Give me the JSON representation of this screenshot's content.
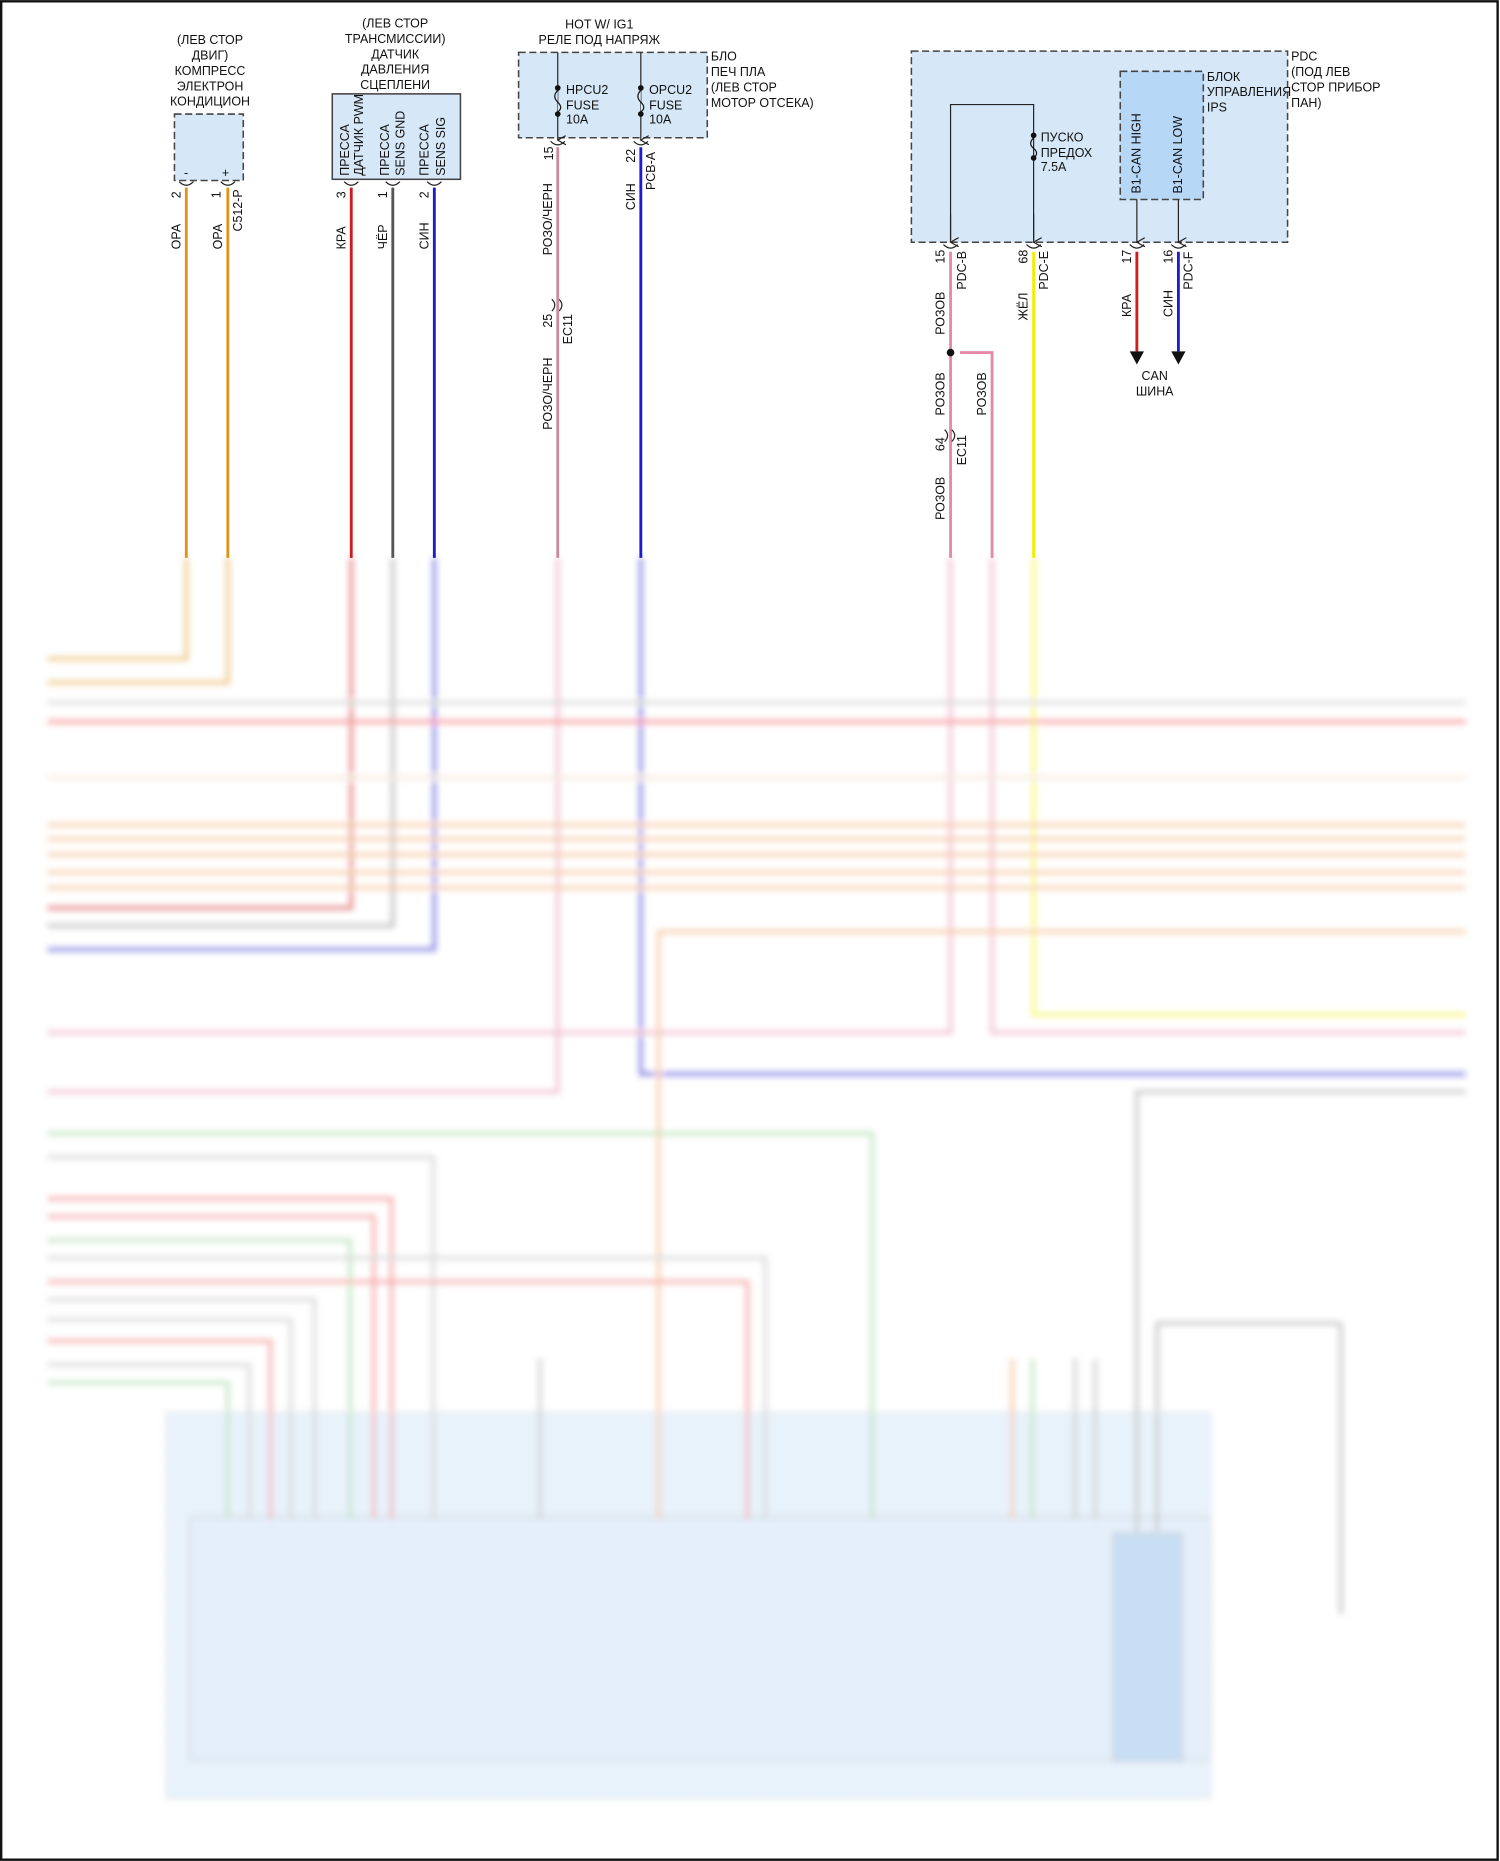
{
  "compressor": {
    "title": [
      "(ЛЕВ СТОР",
      "ДВИГ)",
      "КОМПРЕСС",
      "ЭЛЕКТРОН",
      "КОНДИЦИОН"
    ],
    "pin_minus": "-",
    "pin_plus": "+",
    "pins": [
      "2",
      "1"
    ],
    "connector": "C512-P",
    "wires": [
      "ОРА",
      "ОРА"
    ]
  },
  "pressure_sensor": {
    "title": [
      "(ЛЕВ СТОР",
      "ТРАНСМИССИИ)",
      "ДАТЧИК",
      "ДАВЛЕНИЯ",
      "СЦЕПЛЕНИ"
    ],
    "terminals": [
      [
        "ПРЕССА",
        "ДАТЧИК PWM"
      ],
      [
        "ПРЕССА",
        "SENS GND"
      ],
      [
        "ПРЕССА",
        "SENS SIG"
      ]
    ],
    "pins": [
      "3",
      "1",
      "2"
    ],
    "wires": [
      "КРА",
      "ЧЁР",
      "СИН"
    ]
  },
  "blo": {
    "title": [
      "HOT W/ IG1",
      "РЕЛЕ ПОД НАПРЯЖ"
    ],
    "side": [
      "БЛО",
      "ПЕЧ ПЛА",
      "(ЛЕВ СТОР",
      "МОТОР ОТСЕКА)"
    ],
    "fuses": [
      [
        "HPCU2",
        "FUSE",
        "10A"
      ],
      [
        "OPCU2",
        "FUSE",
        "10A"
      ]
    ],
    "pins": [
      "15",
      "22"
    ],
    "connector_b": "PCB-A",
    "wire_a": "РОЗО/ЧЕРН",
    "wire_b": "СИН",
    "inline_pin": "25",
    "inline_connector": "EC11"
  },
  "pdc": {
    "side": [
      "PDC",
      "(ПОД ЛЕВ",
      "СТОР ПРИБОР",
      "ПАН)"
    ],
    "fuse": [
      "ПУСКО",
      "ПРЕДОХ",
      "7.5A"
    ],
    "ips": [
      "БЛОК",
      "УПРАВЛЕНИЯ",
      "IPS"
    ],
    "can_high": "B1-CAN HIGH",
    "can_low": "B1-CAN LOW",
    "pins": [
      "15",
      "68",
      "17",
      "16"
    ],
    "connectors": [
      "PDC-B",
      "PDC-E",
      "PDC-F"
    ],
    "wires": [
      "РОЗОВ",
      "ЖЁЛ",
      "КРА",
      "СИН"
    ],
    "splice_wires": [
      "РОЗОВ",
      "РОЗОВ",
      "РОЗОВ"
    ],
    "inline_pin": "64",
    "inline_connector": "EC11",
    "can_bus": [
      "CAN",
      "ШИНА"
    ]
  },
  "colors": {
    "orange": "#e0951a",
    "red": "#d01c1c",
    "black": "#555555",
    "blue": "#1c1ccc",
    "pink_black": "#c98aa0",
    "pink": "#e48aa8",
    "yellow": "#f2ee00",
    "green": "#8cd08c",
    "module": "#d6e8f8"
  }
}
